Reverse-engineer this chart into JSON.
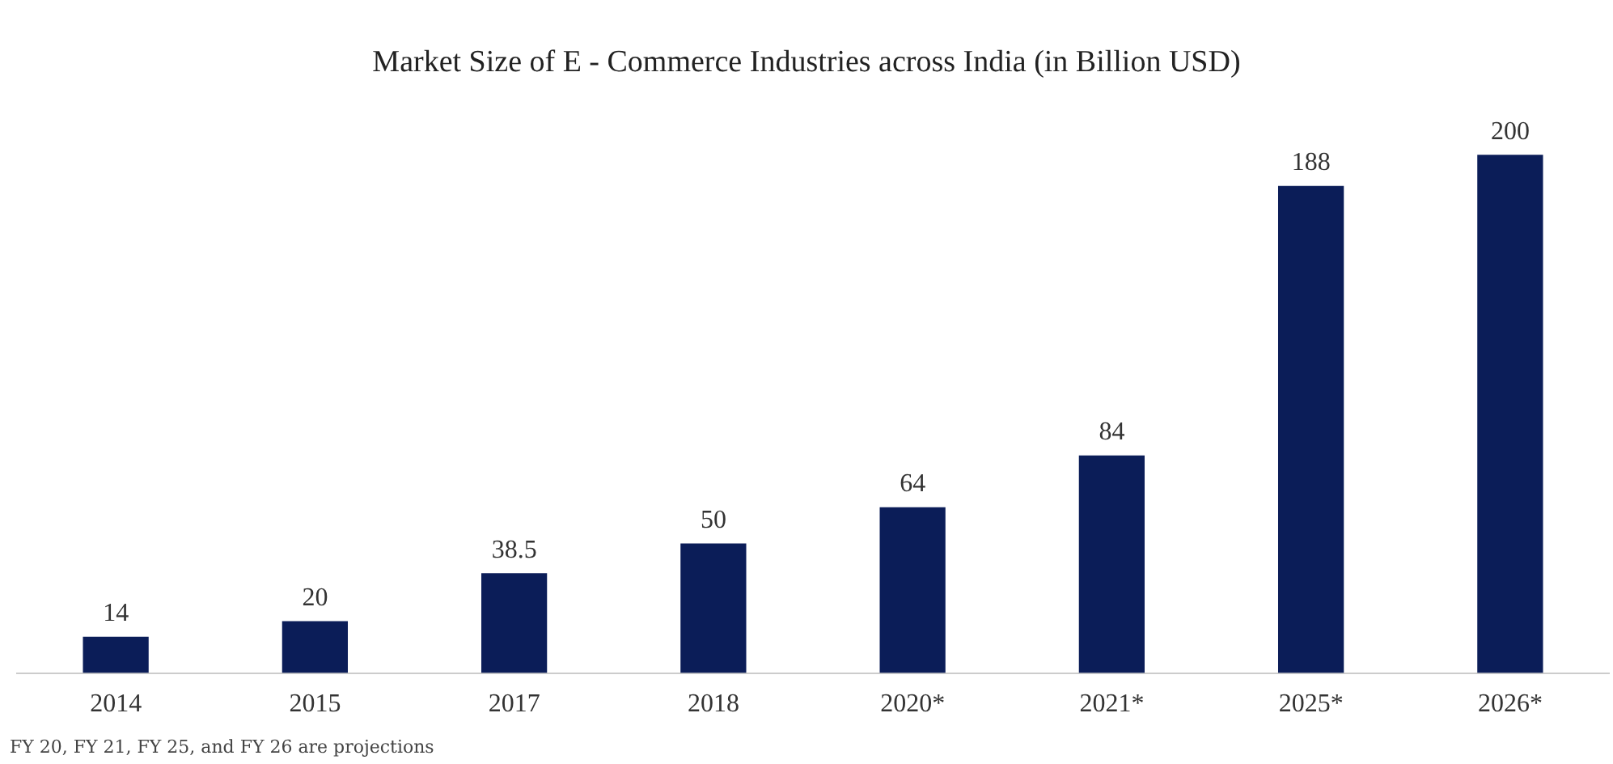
{
  "chart_data": {
    "type": "bar",
    "title": "Market Size of E - Commerce Industries across India (in Billion USD)",
    "categories": [
      "2014",
      "2015",
      "2017",
      "2018",
      "2020*",
      "2021*",
      "2025*",
      "2026*"
    ],
    "values": [
      14,
      20,
      38.5,
      50,
      64,
      84,
      188,
      200
    ],
    "color": "#0b1d58",
    "data_labels": true,
    "grid": false,
    "legend": false,
    "annotations": [
      "FY 20, FY 21, FY 25, and FY 26 are projections"
    ]
  }
}
